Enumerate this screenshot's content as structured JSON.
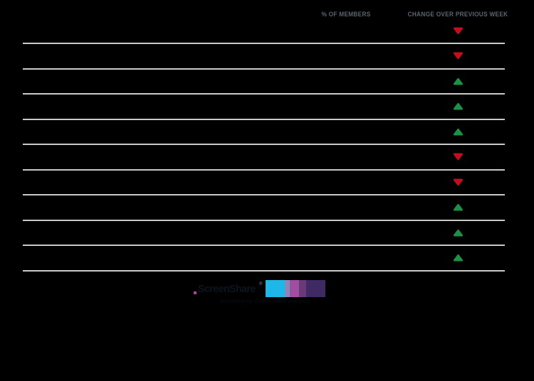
{
  "table": {
    "headers": [
      {
        "label": "% OF MEMBERS"
      },
      {
        "label": "CHANGE OVER PREVIOUS WEEK"
      }
    ],
    "rows": [
      {
        "change": "down"
      },
      {
        "change": "down"
      },
      {
        "change": "up"
      },
      {
        "change": "up"
      },
      {
        "change": "up"
      },
      {
        "change": "down"
      },
      {
        "change": "down"
      },
      {
        "change": "up"
      },
      {
        "change": "up"
      },
      {
        "change": "up"
      }
    ]
  },
  "colors": {
    "up": "#1d9144",
    "down": "#c40d1e",
    "header_text": "#5b6470",
    "divider": "#c9c9c9",
    "background": "#000000",
    "accent_dot": "#b43fa0"
  },
  "logo": {
    "wordmark": "ScreenShare",
    "registered_mark": "®",
    "tagline": "presented by screen share analytics",
    "blocks": [
      "#1db7ea",
      "#8b87bb",
      "#a04ea0",
      "#6a3a78",
      "#402a63"
    ]
  }
}
